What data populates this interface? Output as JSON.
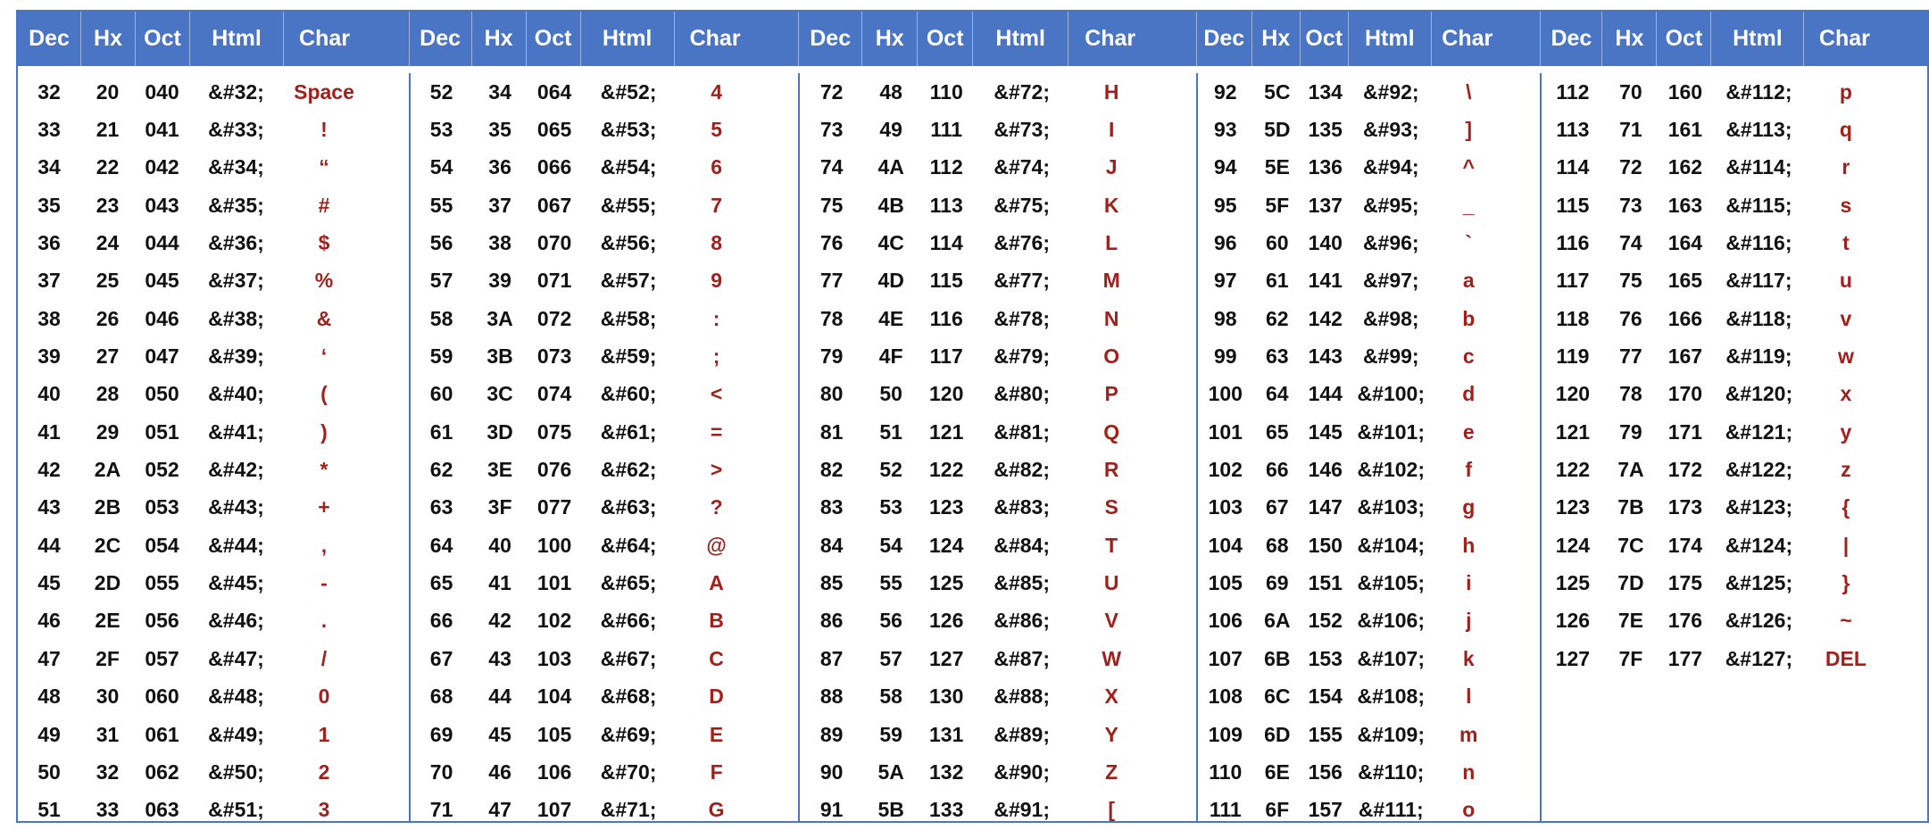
{
  "colors": {
    "header_bg": "#4a74c4",
    "border": "#4a74c4",
    "char_text": "#a0201c",
    "body_text": "#111111"
  },
  "headers": [
    "Dec",
    "Hx",
    "Oct",
    "Html",
    "Char"
  ],
  "groups": [
    {
      "rows": [
        [
          "32",
          "20",
          "040",
          "&#32;",
          "Space"
        ],
        [
          "33",
          "21",
          "041",
          "&#33;",
          "!"
        ],
        [
          "34",
          "22",
          "042",
          "&#34;",
          "“"
        ],
        [
          "35",
          "23",
          "043",
          "&#35;",
          "#"
        ],
        [
          "36",
          "24",
          "044",
          "&#36;",
          "$"
        ],
        [
          "37",
          "25",
          "045",
          "&#37;",
          "%"
        ],
        [
          "38",
          "26",
          "046",
          "&#38;",
          "&"
        ],
        [
          "39",
          "27",
          "047",
          "&#39;",
          "‘"
        ],
        [
          "40",
          "28",
          "050",
          "&#40;",
          "("
        ],
        [
          "41",
          "29",
          "051",
          "&#41;",
          ")"
        ],
        [
          "42",
          "2A",
          "052",
          "&#42;",
          "*"
        ],
        [
          "43",
          "2B",
          "053",
          "&#43;",
          "+"
        ],
        [
          "44",
          "2C",
          "054",
          "&#44;",
          ","
        ],
        [
          "45",
          "2D",
          "055",
          "&#45;",
          "-"
        ],
        [
          "46",
          "2E",
          "056",
          "&#46;",
          "."
        ],
        [
          "47",
          "2F",
          "057",
          "&#47;",
          "/"
        ],
        [
          "48",
          "30",
          "060",
          "&#48;",
          "0"
        ],
        [
          "49",
          "31",
          "061",
          "&#49;",
          "1"
        ],
        [
          "50",
          "32",
          "062",
          "&#50;",
          "2"
        ],
        [
          "51",
          "33",
          "063",
          "&#51;",
          "3"
        ]
      ]
    },
    {
      "rows": [
        [
          "52",
          "34",
          "064",
          "&#52;",
          "4"
        ],
        [
          "53",
          "35",
          "065",
          "&#53;",
          "5"
        ],
        [
          "54",
          "36",
          "066",
          "&#54;",
          "6"
        ],
        [
          "55",
          "37",
          "067",
          "&#55;",
          "7"
        ],
        [
          "56",
          "38",
          "070",
          "&#56;",
          "8"
        ],
        [
          "57",
          "39",
          "071",
          "&#57;",
          "9"
        ],
        [
          "58",
          "3A",
          "072",
          "&#58;",
          ":"
        ],
        [
          "59",
          "3B",
          "073",
          "&#59;",
          ";"
        ],
        [
          "60",
          "3C",
          "074",
          "&#60;",
          "<"
        ],
        [
          "61",
          "3D",
          "075",
          "&#61;",
          "="
        ],
        [
          "62",
          "3E",
          "076",
          "&#62;",
          ">"
        ],
        [
          "63",
          "3F",
          "077",
          "&#63;",
          "?"
        ],
        [
          "64",
          "40",
          "100",
          "&#64;",
          "@"
        ],
        [
          "65",
          "41",
          "101",
          "&#65;",
          "A"
        ],
        [
          "66",
          "42",
          "102",
          "&#66;",
          "B"
        ],
        [
          "67",
          "43",
          "103",
          "&#67;",
          "C"
        ],
        [
          "68",
          "44",
          "104",
          "&#68;",
          "D"
        ],
        [
          "69",
          "45",
          "105",
          "&#69;",
          "E"
        ],
        [
          "70",
          "46",
          "106",
          "&#70;",
          "F"
        ],
        [
          "71",
          "47",
          "107",
          "&#71;",
          "G"
        ]
      ]
    },
    {
      "rows": [
        [
          "72",
          "48",
          "110",
          "&#72;",
          "H"
        ],
        [
          "73",
          "49",
          "111",
          "&#73;",
          "I"
        ],
        [
          "74",
          "4A",
          "112",
          "&#74;",
          "J"
        ],
        [
          "75",
          "4B",
          "113",
          "&#75;",
          "K"
        ],
        [
          "76",
          "4C",
          "114",
          "&#76;",
          "L"
        ],
        [
          "77",
          "4D",
          "115",
          "&#77;",
          "M"
        ],
        [
          "78",
          "4E",
          "116",
          "&#78;",
          "N"
        ],
        [
          "79",
          "4F",
          "117",
          "&#79;",
          "O"
        ],
        [
          "80",
          "50",
          "120",
          "&#80;",
          "P"
        ],
        [
          "81",
          "51",
          "121",
          "&#81;",
          "Q"
        ],
        [
          "82",
          "52",
          "122",
          "&#82;",
          "R"
        ],
        [
          "83",
          "53",
          "123",
          "&#83;",
          "S"
        ],
        [
          "84",
          "54",
          "124",
          "&#84;",
          "T"
        ],
        [
          "85",
          "55",
          "125",
          "&#85;",
          "U"
        ],
        [
          "86",
          "56",
          "126",
          "&#86;",
          "V"
        ],
        [
          "87",
          "57",
          "127",
          "&#87;",
          "W"
        ],
        [
          "88",
          "58",
          "130",
          "&#88;",
          "X"
        ],
        [
          "89",
          "59",
          "131",
          "&#89;",
          "Y"
        ],
        [
          "90",
          "5A",
          "132",
          "&#90;",
          "Z"
        ],
        [
          "91",
          "5B",
          "133",
          "&#91;",
          "["
        ]
      ]
    },
    {
      "rows": [
        [
          "92",
          "5C",
          "134",
          "&#92;",
          "\\"
        ],
        [
          "93",
          "5D",
          "135",
          "&#93;",
          "]"
        ],
        [
          "94",
          "5E",
          "136",
          "&#94;",
          "^"
        ],
        [
          "95",
          "5F",
          "137",
          "&#95;",
          "_"
        ],
        [
          "96",
          "60",
          "140",
          "&#96;",
          "`"
        ],
        [
          "97",
          "61",
          "141",
          "&#97;",
          "a"
        ],
        [
          "98",
          "62",
          "142",
          "&#98;",
          "b"
        ],
        [
          "99",
          "63",
          "143",
          "&#99;",
          "c"
        ],
        [
          "100",
          "64",
          "144",
          "&#100;",
          "d"
        ],
        [
          "101",
          "65",
          "145",
          "&#101;",
          "e"
        ],
        [
          "102",
          "66",
          "146",
          "&#102;",
          "f"
        ],
        [
          "103",
          "67",
          "147",
          "&#103;",
          "g"
        ],
        [
          "104",
          "68",
          "150",
          "&#104;",
          "h"
        ],
        [
          "105",
          "69",
          "151",
          "&#105;",
          "i"
        ],
        [
          "106",
          "6A",
          "152",
          "&#106;",
          "j"
        ],
        [
          "107",
          "6B",
          "153",
          "&#107;",
          "k"
        ],
        [
          "108",
          "6C",
          "154",
          "&#108;",
          "l"
        ],
        [
          "109",
          "6D",
          "155",
          "&#109;",
          "m"
        ],
        [
          "110",
          "6E",
          "156",
          "&#110;",
          "n"
        ],
        [
          "111",
          "6F",
          "157",
          "&#111;",
          "o"
        ]
      ]
    },
    {
      "rows": [
        [
          "112",
          "70",
          "160",
          "&#112;",
          "p"
        ],
        [
          "113",
          "71",
          "161",
          "&#113;",
          "q"
        ],
        [
          "114",
          "72",
          "162",
          "&#114;",
          "r"
        ],
        [
          "115",
          "73",
          "163",
          "&#115;",
          "s"
        ],
        [
          "116",
          "74",
          "164",
          "&#116;",
          "t"
        ],
        [
          "117",
          "75",
          "165",
          "&#117;",
          "u"
        ],
        [
          "118",
          "76",
          "166",
          "&#118;",
          "v"
        ],
        [
          "119",
          "77",
          "167",
          "&#119;",
          "w"
        ],
        [
          "120",
          "78",
          "170",
          "&#120;",
          "x"
        ],
        [
          "121",
          "79",
          "171",
          "&#121;",
          "y"
        ],
        [
          "122",
          "7A",
          "172",
          "&#122;",
          "z"
        ],
        [
          "123",
          "7B",
          "173",
          "&#123;",
          "{"
        ],
        [
          "124",
          "7C",
          "174",
          "&#124;",
          "|"
        ],
        [
          "125",
          "7D",
          "175",
          "&#125;",
          "}"
        ],
        [
          "126",
          "7E",
          "176",
          "&#126;",
          "~"
        ],
        [
          "127",
          "7F",
          "177",
          "&#127;",
          "DEL"
        ]
      ]
    }
  ]
}
